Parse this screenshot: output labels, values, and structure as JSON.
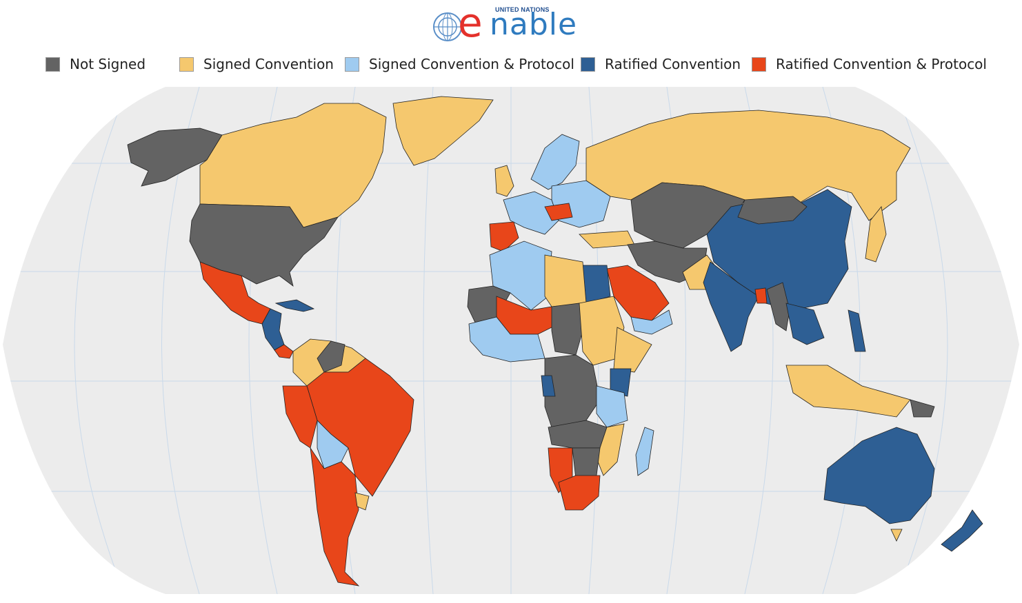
{
  "header": {
    "un_label": "UNITED NATIONS",
    "brand_e": "e",
    "brand_rest": "nable"
  },
  "legend": [
    {
      "label": "Not Signed",
      "color": "#636363"
    },
    {
      "label": "Signed Convention",
      "color": "#f5c86e"
    },
    {
      "label": "Signed Convention & Protocol",
      "color": "#9fcbf0"
    },
    {
      "label": "Ratified Convention",
      "color": "#2e5f94"
    },
    {
      "label": "Ratified Convention & Protocol",
      "color": "#e8461a"
    }
  ],
  "colors": {
    "ocean": "#ececec",
    "grid": "#c9d9ea",
    "border": "#222222"
  }
}
